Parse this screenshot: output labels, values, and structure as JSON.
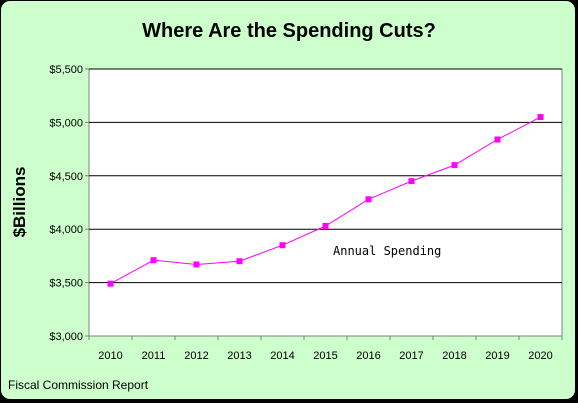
{
  "chart_data": {
    "type": "line",
    "title": "Where Are the Spending Cuts?",
    "xlabel": "",
    "ylabel": "$Billions",
    "x": [
      "2010",
      "2011",
      "2012",
      "2013",
      "2014",
      "2015",
      "2016",
      "2017",
      "2018",
      "2019",
      "2020"
    ],
    "series": [
      {
        "name": "Annual Spending",
        "values": [
          3490,
          3710,
          3670,
          3700,
          3850,
          4030,
          4280,
          4450,
          4600,
          4840,
          5050
        ],
        "color": "#ff00ff"
      }
    ],
    "ylim": [
      3000,
      5500
    ],
    "yticks": [
      "$3,000",
      "$3,500",
      "$4,000",
      "$4,500",
      "$5,000",
      "$5,500"
    ],
    "ytick_values": [
      3000,
      3500,
      4000,
      4500,
      5000,
      5500
    ],
    "grid": true,
    "background": "#ccffcc",
    "plot_background": "#ffffff",
    "source": "Fiscal Commission Report"
  }
}
